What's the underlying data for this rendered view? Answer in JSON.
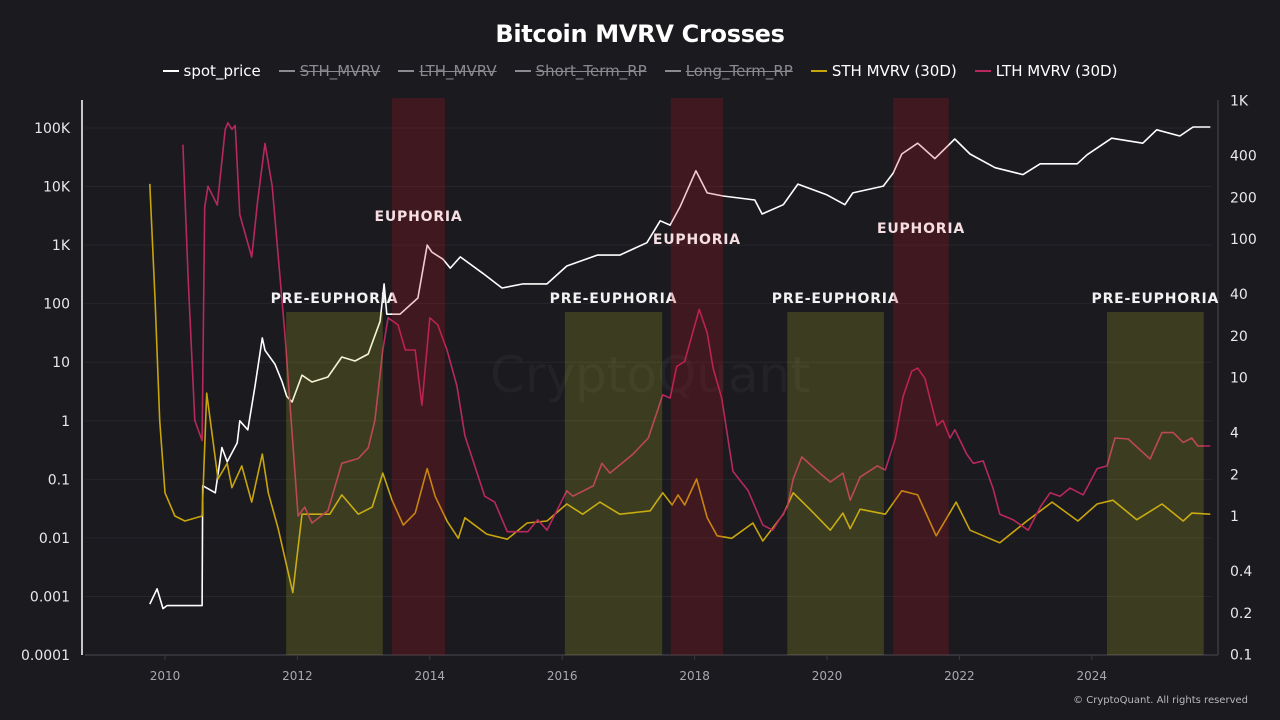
{
  "chart_data": {
    "type": "line",
    "title": "Bitcoin MVRV Crosses",
    "legend": [
      {
        "name": "spot_price",
        "color": "#ffffff",
        "hidden": false
      },
      {
        "name": "STH_MVRV",
        "color": "#8a8a90",
        "hidden": true
      },
      {
        "name": "LTH_MVRV",
        "color": "#8a8a90",
        "hidden": true
      },
      {
        "name": "Short_Term_RP",
        "color": "#8a8a90",
        "hidden": true
      },
      {
        "name": "Long_Term_RP",
        "color": "#8a8a90",
        "hidden": true
      },
      {
        "name": "STH MVRV (30D)",
        "color": "#c9a50c",
        "hidden": false
      },
      {
        "name": "LTH MVRV (30D)",
        "color": "#b8285f",
        "hidden": false
      }
    ],
    "legend_position": "top-center",
    "x_axis": {
      "range": [
        2008.8,
        2025.8
      ],
      "ticks": [
        "2010",
        "2012",
        "2014",
        "2016",
        "2018",
        "2020",
        "2022",
        "2024"
      ]
    },
    "y_left": {
      "scale": "log",
      "range": [
        0.0001,
        100000
      ],
      "ticks": [
        "100K",
        "10K",
        "1K",
        "100",
        "10",
        "1",
        "0.1",
        "0.01",
        "0.001",
        "0.0001"
      ]
    },
    "y_right": {
      "scale": "log",
      "range": [
        0.1,
        1000
      ],
      "ticks": [
        "1K",
        "400",
        "200",
        "100",
        "40",
        "20",
        "10",
        "4",
        "2",
        "1",
        "0.4",
        "0.2",
        "0.1"
      ]
    },
    "grid": true,
    "bands": [
      {
        "label": "PRE-EUPHORIA",
        "kind": "pre-euphoria",
        "start": 2011.83,
        "end": 2013.29
      },
      {
        "label": "EUPHORIA",
        "kind": "euphoria",
        "start": 2013.43,
        "end": 2014.23
      },
      {
        "label": "PRE-EUPHORIA",
        "kind": "pre-euphoria",
        "start": 2016.04,
        "end": 2017.51
      },
      {
        "label": "EUPHORIA",
        "kind": "euphoria",
        "start": 2017.64,
        "end": 2018.43
      },
      {
        "label": "PRE-EUPHORIA",
        "kind": "pre-euphoria",
        "start": 2019.4,
        "end": 2020.86
      },
      {
        "label": "EUPHORIA",
        "kind": "euphoria",
        "start": 2021.0,
        "end": 2021.84
      },
      {
        "label": "PRE-EUPHORIA",
        "kind": "pre-euphoria",
        "start": 2024.23,
        "end": 2025.69
      }
    ],
    "band_colors": {
      "pre-euphoria": "#c8c828",
      "euphoria": "#c8141e"
    },
    "series": [
      {
        "name": "spot_price",
        "axis": "left",
        "color": "#ffffff",
        "points": [
          [
            2009.77,
            0.00074
          ],
          [
            2009.88,
            0.00135
          ],
          [
            2009.97,
            0.00062
          ],
          [
            2010.03,
            0.0007
          ],
          [
            2010.56,
            0.0007
          ],
          [
            2010.57,
            0.078
          ],
          [
            2010.76,
            0.059
          ],
          [
            2010.86,
            0.35
          ],
          [
            2010.94,
            0.2
          ],
          [
            2011.09,
            0.42
          ],
          [
            2011.13,
            1.0
          ],
          [
            2011.25,
            0.7
          ],
          [
            2011.36,
            3.9
          ],
          [
            2011.47,
            26
          ],
          [
            2011.51,
            16
          ],
          [
            2011.66,
            9.3
          ],
          [
            2011.77,
            4.6
          ],
          [
            2011.84,
            2.6
          ],
          [
            2011.92,
            2.1
          ],
          [
            2012.07,
            6.0
          ],
          [
            2012.22,
            4.6
          ],
          [
            2012.46,
            5.6
          ],
          [
            2012.67,
            12.3
          ],
          [
            2012.87,
            10.5
          ],
          [
            2013.07,
            13.8
          ],
          [
            2013.25,
            50
          ],
          [
            2013.31,
            218
          ],
          [
            2013.35,
            66
          ],
          [
            2013.55,
            66
          ],
          [
            2013.82,
            125
          ],
          [
            2013.96,
            1000
          ],
          [
            2014.03,
            760
          ],
          [
            2014.2,
            575
          ],
          [
            2014.31,
            405
          ],
          [
            2014.46,
            630
          ],
          [
            2014.8,
            330
          ],
          [
            2015.09,
            185
          ],
          [
            2015.41,
            218
          ],
          [
            2015.77,
            218
          ],
          [
            2016.07,
            440
          ],
          [
            2016.53,
            675
          ],
          [
            2016.87,
            675
          ],
          [
            2017.28,
            1100
          ],
          [
            2017.48,
            2600
          ],
          [
            2017.63,
            2200
          ],
          [
            2017.78,
            4500
          ],
          [
            2018.02,
            18600
          ],
          [
            2018.19,
            7800
          ],
          [
            2018.43,
            6900
          ],
          [
            2018.91,
            5900
          ],
          [
            2019.02,
            3400
          ],
          [
            2019.34,
            4900
          ],
          [
            2019.56,
            11000
          ],
          [
            2020.0,
            7200
          ],
          [
            2020.27,
            4900
          ],
          [
            2020.39,
            7800
          ],
          [
            2020.85,
            10200
          ],
          [
            2021.0,
            17000
          ],
          [
            2021.13,
            36000
          ],
          [
            2021.37,
            55000
          ],
          [
            2021.63,
            30000
          ],
          [
            2021.93,
            65000
          ],
          [
            2022.16,
            36000
          ],
          [
            2022.54,
            21000
          ],
          [
            2022.96,
            16000
          ],
          [
            2023.22,
            24500
          ],
          [
            2023.78,
            24500
          ],
          [
            2023.93,
            35000
          ],
          [
            2024.3,
            67000
          ],
          [
            2024.77,
            55000
          ],
          [
            2024.98,
            93000
          ],
          [
            2025.33,
            73000
          ],
          [
            2025.53,
            104000
          ],
          [
            2025.79,
            104000
          ]
        ]
      },
      {
        "name": "STH MVRV (30D)",
        "axis": "right",
        "color": "#c9a50c",
        "points": [
          [
            2009.77,
            250
          ],
          [
            2009.85,
            36
          ],
          [
            2009.92,
            4.9
          ],
          [
            2010.0,
            1.47
          ],
          [
            2010.15,
            1.0
          ],
          [
            2010.3,
            0.92
          ],
          [
            2010.56,
            1.0
          ],
          [
            2010.63,
            7.7
          ],
          [
            2010.8,
            1.85
          ],
          [
            2010.94,
            2.4
          ],
          [
            2011.01,
            1.6
          ],
          [
            2011.16,
            2.3
          ],
          [
            2011.31,
            1.26
          ],
          [
            2011.47,
            2.8
          ],
          [
            2011.56,
            1.47
          ],
          [
            2011.71,
            0.81
          ],
          [
            2011.93,
            0.28
          ],
          [
            2012.07,
            1.03
          ],
          [
            2012.49,
            1.03
          ],
          [
            2012.67,
            1.42
          ],
          [
            2012.92,
            1.03
          ],
          [
            2013.13,
            1.16
          ],
          [
            2013.29,
            2.04
          ],
          [
            2013.43,
            1.3
          ],
          [
            2013.6,
            0.86
          ],
          [
            2013.78,
            1.05
          ],
          [
            2013.96,
            2.2
          ],
          [
            2014.08,
            1.39
          ],
          [
            2014.26,
            0.92
          ],
          [
            2014.43,
            0.69
          ],
          [
            2014.53,
            0.97
          ],
          [
            2014.86,
            0.74
          ],
          [
            2015.17,
            0.68
          ],
          [
            2015.47,
            0.89
          ],
          [
            2015.77,
            0.92
          ],
          [
            2016.07,
            1.22
          ],
          [
            2016.31,
            1.03
          ],
          [
            2016.57,
            1.26
          ],
          [
            2016.87,
            1.03
          ],
          [
            2017.33,
            1.09
          ],
          [
            2017.52,
            1.47
          ],
          [
            2017.66,
            1.2
          ],
          [
            2017.75,
            1.42
          ],
          [
            2017.85,
            1.2
          ],
          [
            2018.03,
            1.85
          ],
          [
            2018.19,
            0.97
          ],
          [
            2018.34,
            0.72
          ],
          [
            2018.56,
            0.69
          ],
          [
            2018.88,
            0.89
          ],
          [
            2019.03,
            0.66
          ],
          [
            2019.34,
            1.03
          ],
          [
            2019.49,
            1.47
          ],
          [
            2019.74,
            1.12
          ],
          [
            2020.05,
            0.79
          ],
          [
            2020.24,
            1.05
          ],
          [
            2020.35,
            0.81
          ],
          [
            2020.5,
            1.12
          ],
          [
            2020.88,
            1.03
          ],
          [
            2021.13,
            1.52
          ],
          [
            2021.37,
            1.42
          ],
          [
            2021.65,
            0.72
          ],
          [
            2021.95,
            1.26
          ],
          [
            2022.16,
            0.79
          ],
          [
            2022.61,
            0.64
          ],
          [
            2023.02,
            0.92
          ],
          [
            2023.4,
            1.26
          ],
          [
            2023.79,
            0.92
          ],
          [
            2024.08,
            1.22
          ],
          [
            2024.32,
            1.3
          ],
          [
            2024.68,
            0.94
          ],
          [
            2025.06,
            1.22
          ],
          [
            2025.38,
            0.92
          ],
          [
            2025.51,
            1.05
          ],
          [
            2025.79,
            1.03
          ]
        ]
      },
      {
        "name": "LTH MVRV (30D)",
        "axis": "right",
        "color": "#b8285f",
        "points": [
          [
            2010.27,
            480
          ],
          [
            2010.35,
            51
          ],
          [
            2010.45,
            4.9
          ],
          [
            2010.56,
            3.5
          ],
          [
            2010.6,
            170
          ],
          [
            2010.65,
            240
          ],
          [
            2010.79,
            176
          ],
          [
            2010.91,
            620
          ],
          [
            2010.95,
            690
          ],
          [
            2011.01,
            620
          ],
          [
            2011.06,
            660
          ],
          [
            2011.13,
            150
          ],
          [
            2011.31,
            74
          ],
          [
            2011.4,
            190
          ],
          [
            2011.51,
            490
          ],
          [
            2011.62,
            240
          ],
          [
            2011.81,
            21
          ],
          [
            2012.01,
            1.0
          ],
          [
            2012.11,
            1.16
          ],
          [
            2012.22,
            0.89
          ],
          [
            2012.46,
            1.09
          ],
          [
            2012.67,
            2.4
          ],
          [
            2012.92,
            2.6
          ],
          [
            2013.07,
            3.1
          ],
          [
            2013.17,
            4.9
          ],
          [
            2013.29,
            15.8
          ],
          [
            2013.37,
            27
          ],
          [
            2013.52,
            24
          ],
          [
            2013.63,
            15.8
          ],
          [
            2013.78,
            15.8
          ],
          [
            2013.88,
            6.3
          ],
          [
            2014.0,
            27
          ],
          [
            2014.12,
            24
          ],
          [
            2014.26,
            15.8
          ],
          [
            2014.41,
            8.7
          ],
          [
            2014.53,
            3.8
          ],
          [
            2014.83,
            1.39
          ],
          [
            2014.98,
            1.26
          ],
          [
            2015.17,
            0.77
          ],
          [
            2015.48,
            0.77
          ],
          [
            2015.63,
            0.94
          ],
          [
            2015.77,
            0.79
          ],
          [
            2016.07,
            1.52
          ],
          [
            2016.16,
            1.39
          ],
          [
            2016.47,
            1.65
          ],
          [
            2016.6,
            2.4
          ],
          [
            2016.72,
            2.04
          ],
          [
            2017.07,
            2.8
          ],
          [
            2017.3,
            3.66
          ],
          [
            2017.52,
            7.5
          ],
          [
            2017.63,
            7.1
          ],
          [
            2017.73,
            12
          ],
          [
            2017.85,
            13.1
          ],
          [
            2018.07,
            31
          ],
          [
            2018.19,
            21
          ],
          [
            2018.28,
            11.7
          ],
          [
            2018.41,
            7.1
          ],
          [
            2018.58,
            2.1
          ],
          [
            2018.81,
            1.52
          ],
          [
            2019.03,
            0.86
          ],
          [
            2019.18,
            0.79
          ],
          [
            2019.4,
            1.16
          ],
          [
            2019.49,
            1.85
          ],
          [
            2019.62,
            2.67
          ],
          [
            2019.89,
            2.04
          ],
          [
            2020.05,
            1.76
          ],
          [
            2020.24,
            2.04
          ],
          [
            2020.35,
            1.3
          ],
          [
            2020.5,
            1.91
          ],
          [
            2020.76,
            2.3
          ],
          [
            2020.88,
            2.15
          ],
          [
            2021.03,
            3.6
          ],
          [
            2021.15,
            7.3
          ],
          [
            2021.28,
            11.1
          ],
          [
            2021.37,
            11.7
          ],
          [
            2021.48,
            9.8
          ],
          [
            2021.56,
            6.9
          ],
          [
            2021.66,
            4.5
          ],
          [
            2021.75,
            4.9
          ],
          [
            2021.86,
            3.66
          ],
          [
            2021.93,
            4.2
          ],
          [
            2022.11,
            2.8
          ],
          [
            2022.21,
            2.4
          ],
          [
            2022.36,
            2.5
          ],
          [
            2022.51,
            1.57
          ],
          [
            2022.61,
            1.03
          ],
          [
            2022.81,
            0.94
          ],
          [
            2023.04,
            0.79
          ],
          [
            2023.22,
            1.16
          ],
          [
            2023.37,
            1.47
          ],
          [
            2023.52,
            1.39
          ],
          [
            2023.67,
            1.59
          ],
          [
            2023.87,
            1.42
          ],
          [
            2024.08,
            2.2
          ],
          [
            2024.23,
            2.3
          ],
          [
            2024.35,
            3.66
          ],
          [
            2024.55,
            3.6
          ],
          [
            2024.88,
            2.58
          ],
          [
            2025.06,
            4.0
          ],
          [
            2025.23,
            4.0
          ],
          [
            2025.38,
            3.4
          ],
          [
            2025.51,
            3.66
          ],
          [
            2025.6,
            3.2
          ],
          [
            2025.79,
            3.2
          ]
        ]
      }
    ],
    "watermark": "CryptoQuant"
  },
  "footer": {
    "copyright": "© CryptoQuant. All rights reserved"
  }
}
